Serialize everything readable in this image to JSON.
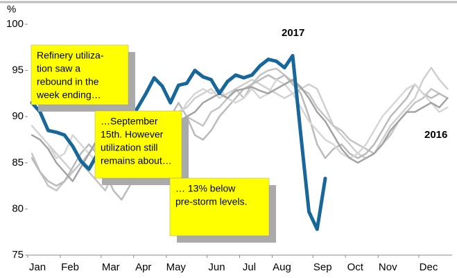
{
  "chart_data": {
    "type": "line",
    "y_label": "%",
    "categories": [
      "Jan",
      null,
      null,
      null,
      "Feb",
      null,
      null,
      null,
      null,
      "Mar",
      null,
      null,
      null,
      "Apr",
      null,
      null,
      null,
      "May",
      null,
      null,
      null,
      null,
      "Jun",
      null,
      null,
      null,
      "Jul",
      null,
      null,
      null,
      "Aug",
      null,
      null,
      null,
      null,
      "Sep",
      null,
      null,
      null,
      "Oct",
      null,
      null,
      null,
      "Nov",
      null,
      null,
      null,
      null,
      "Dec",
      null,
      null,
      null
    ],
    "ylim": [
      75,
      100
    ],
    "yticks": [
      75,
      80,
      85,
      90,
      95,
      100
    ],
    "series": [
      {
        "color": "#cfcfcf",
        "values": [
          89,
          88,
          87,
          86,
          85,
          84,
          85,
          86,
          87,
          88,
          88,
          87,
          88,
          89,
          90,
          89.5,
          89,
          90,
          90.5,
          91,
          92,
          92.5,
          93,
          92,
          92.5,
          93,
          93.5,
          94,
          93.5,
          93,
          92.5,
          92,
          92.5,
          93,
          93.5,
          93,
          91,
          89,
          88,
          87,
          86,
          85.5,
          86,
          87.5,
          89,
          90,
          91,
          92,
          94,
          95.3,
          94,
          93
        ]
      },
      {
        "color": "#c4c4c4",
        "values": [
          86,
          84,
          82.5,
          82,
          83,
          84,
          85,
          84,
          83,
          82,
          84,
          86,
          87,
          88,
          89,
          90,
          90.5,
          90,
          89,
          90,
          89.5,
          89,
          90.5,
          91,
          92,
          93,
          92,
          93.5,
          94.5,
          95,
          95.2,
          94.5,
          93.8,
          93,
          92.5,
          91,
          90,
          89,
          88.5,
          87.5,
          87,
          86.5,
          86,
          87,
          88,
          89.5,
          90.5,
          91.5,
          92,
          93,
          92.5,
          92
        ]
      },
      {
        "color": "#bababa",
        "values": [
          85.5,
          84,
          83,
          82.5,
          83,
          84.5,
          86,
          87,
          86,
          84,
          82,
          81,
          82.5,
          84.5,
          86,
          88,
          89,
          90,
          91.5,
          90,
          88,
          87.5,
          88.5,
          90,
          91,
          92,
          93,
          93.5,
          94,
          94.5,
          94,
          94.5,
          93.5,
          92.5,
          90,
          87,
          85.5,
          86.5,
          87,
          86,
          85.5,
          86,
          87,
          88.5,
          90,
          91,
          92,
          93.5,
          92.5,
          92,
          92.5,
          92
        ]
      },
      {
        "color": "#d6d6d6",
        "values": [
          89,
          88,
          87,
          85.5,
          86,
          88,
          87,
          86,
          85,
          86.5,
          87.5,
          88,
          89,
          88,
          87,
          87.5,
          88,
          89,
          90,
          91.5,
          92.5,
          93,
          92.5,
          93,
          92,
          91.5,
          92,
          93,
          92,
          92.5,
          94,
          93.5,
          92.5,
          91,
          89.5,
          88.5,
          87.5,
          87,
          86,
          85.5,
          86,
          87,
          88.5,
          90,
          91,
          92,
          93,
          93.5,
          92.5,
          91.5,
          90.5,
          91
        ]
      },
      {
        "name": "2016",
        "color": "#a3a3a3",
        "values": [
          88,
          87.5,
          86.5,
          85,
          84,
          83,
          84.5,
          86,
          87.5,
          88.5,
          88,
          87.5,
          87,
          89,
          90,
          89,
          88.5,
          89,
          89.5,
          90,
          90.5,
          91.5,
          92,
          92.5,
          92,
          92.8,
          93,
          93.2,
          92.8,
          92.5,
          93,
          93.5,
          94,
          93.2,
          92,
          90.5,
          89.5,
          88,
          86.5,
          85.5,
          85,
          85.5,
          86,
          87,
          88.5,
          89.5,
          90.5,
          90.5,
          91,
          91.5,
          91,
          92
        ]
      },
      {
        "name": "2017",
        "color": "#17679a",
        "values": [
          91.5,
          90.5,
          88.5,
          88.3,
          88,
          86.8,
          85.2,
          84.3,
          85.9,
          86.5,
          87,
          88,
          89.5,
          91,
          92.5,
          94.2,
          93.3,
          91.5,
          93.4,
          93.6,
          95,
          94.3,
          94,
          92.5,
          93.8,
          94.5,
          94.2,
          94.5,
          95.5,
          96.2,
          96,
          95.3,
          96.6,
          88,
          79.7,
          77.8,
          83.3,
          null,
          null,
          null,
          null,
          null,
          null,
          null,
          null,
          null,
          null,
          null,
          null,
          null,
          null,
          null
        ]
      }
    ],
    "annotations": [
      {
        "lines": [
          "Refinery utiliza-",
          "tion saw a",
          "rebound in the",
          "week ending…"
        ]
      },
      {
        "lines": [
          "…September",
          "15th.  However",
          "utilization still",
          "remains about…"
        ]
      },
      {
        "lines": [
          "… 13% below",
          "pre-storm levels."
        ]
      }
    ]
  }
}
